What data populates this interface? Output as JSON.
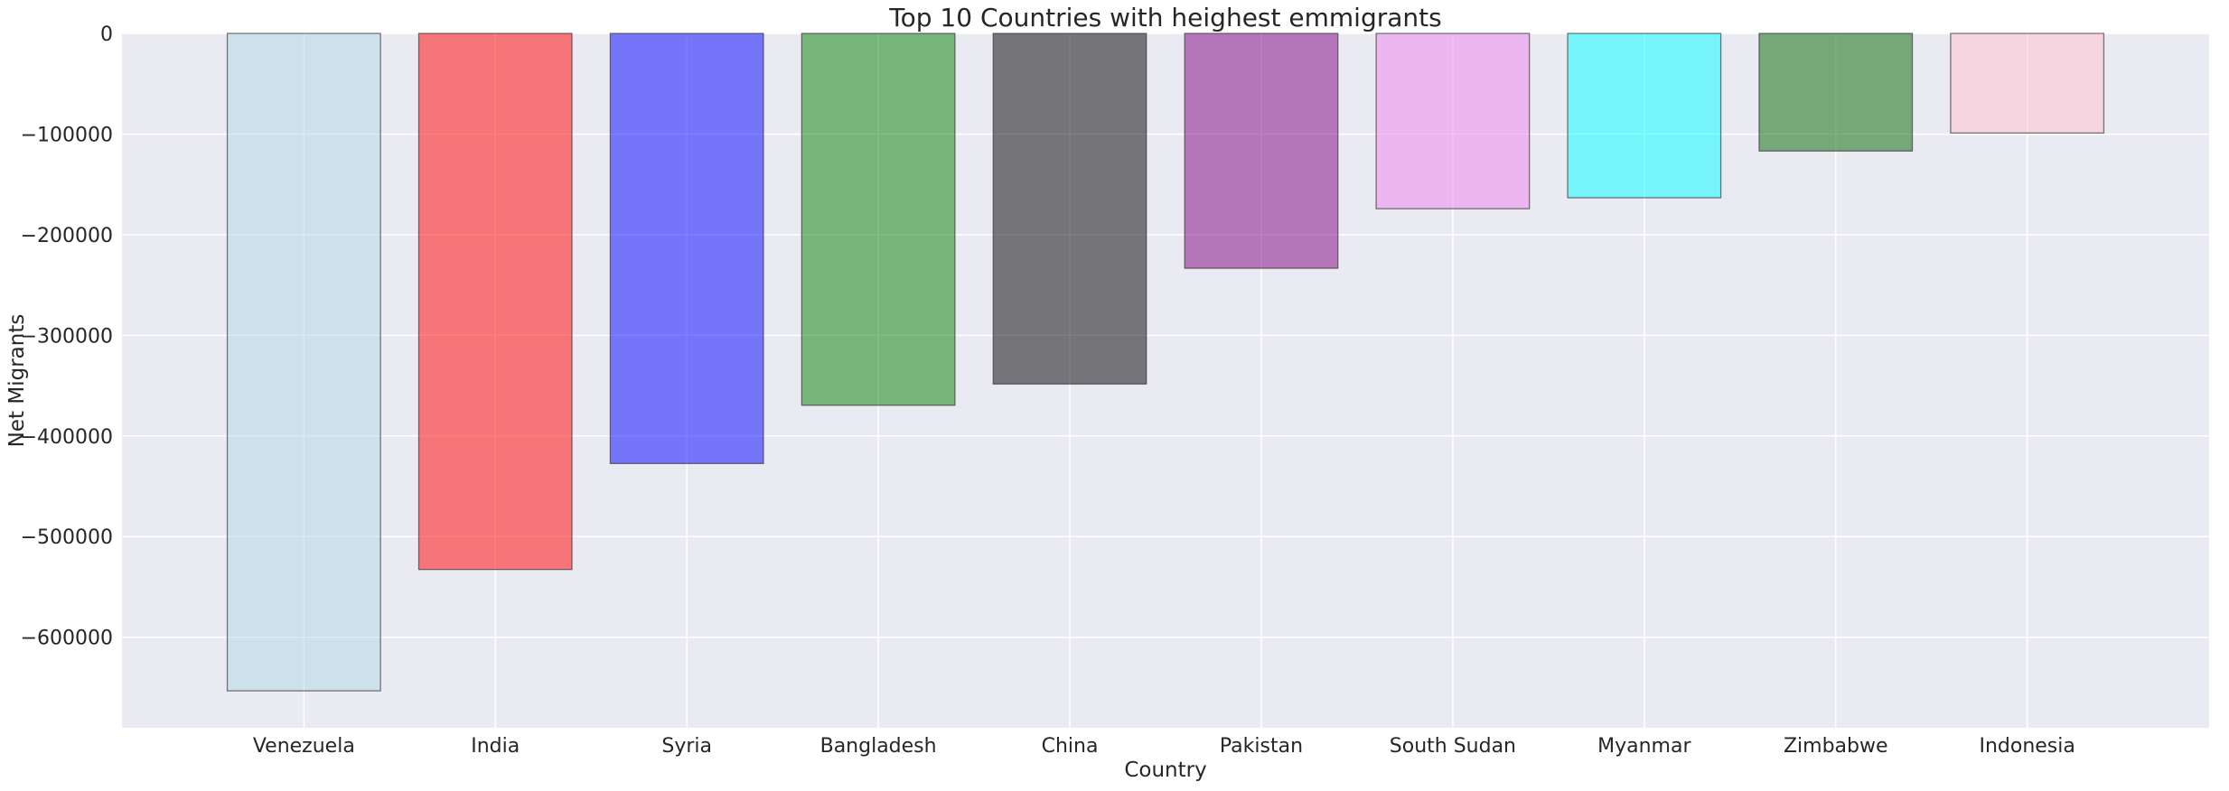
{
  "chart_data": {
    "type": "bar",
    "title": "Top 10 Countries with heighest emmigrants",
    "xlabel": "Country",
    "ylabel": "Net Migrants",
    "categories": [
      "Venezuela",
      "India",
      "Syria",
      "Bangladesh",
      "China",
      "Pakistan",
      "South Sudan",
      "Myanmar",
      "Zimbabwe",
      "Indonesia"
    ],
    "values": [
      -653249,
      -532687,
      -427391,
      -369501,
      -348399,
      -233379,
      -174200,
      -163313,
      -116858,
      -98955
    ],
    "colors": [
      "#add8e6",
      "#ff0000",
      "#0000ff",
      "#008000",
      "#000000",
      "#800080",
      "#ee82ee",
      "#00ffff",
      "#006400",
      "#ffc0cb"
    ],
    "ylim": [
      -690000,
      0
    ],
    "yticks": [
      0,
      -100000,
      -200000,
      -300000,
      -400000,
      -500000,
      -600000
    ],
    "ytick_labels": [
      "0",
      "−100000",
      "−200000",
      "−300000",
      "−400000",
      "−500000",
      "−600000"
    ],
    "grid": true,
    "background": "#eaeaf2",
    "grid_color": "#ffffff",
    "edge_color": "#262626"
  }
}
